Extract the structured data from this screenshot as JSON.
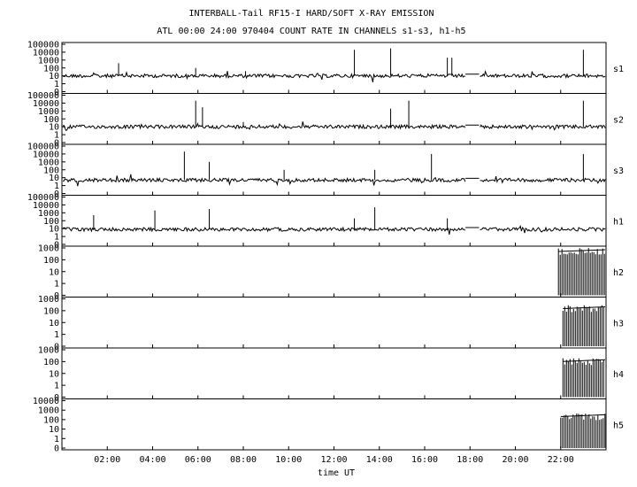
{
  "chart_data": {
    "type": "line",
    "title": "INTERBALL-Tail RF15-I HARD/SOFT X-RAY EMISSION",
    "subtitle": "ATL 00:00 24:00 970404  COUNT RATE IN CHANNELS s1-s3, h1-h5",
    "xlabel": "time UT",
    "xlim": [
      0,
      24
    ],
    "x_tick_values": [
      2,
      4,
      6,
      8,
      10,
      12,
      14,
      16,
      18,
      20,
      22
    ],
    "x_tick_labels": [
      "02:00",
      "04:00",
      "06:00",
      "08:00",
      "10:00",
      "12:00",
      "14:00",
      "16:00",
      "18:00",
      "20:00",
      "22:00"
    ],
    "yscale": "log",
    "grid": false,
    "panels": [
      {
        "channel": "s1",
        "ylim": [
          0,
          100000
        ],
        "y_tick_labels": [
          "100000",
          "10000",
          "1000",
          "100",
          "10",
          "1",
          "0"
        ],
        "baseline": 10,
        "gaps": [
          [
            17.8,
            18.4
          ]
        ],
        "spikes": [
          {
            "x": 2.5,
            "y": 400
          },
          {
            "x": 5.9,
            "y": 100
          },
          {
            "x": 8.1,
            "y": 40
          },
          {
            "x": 12.9,
            "y": 20000
          },
          {
            "x": 14.5,
            "y": 30000
          },
          {
            "x": 17.0,
            "y": 2000
          },
          {
            "x": 17.2,
            "y": 2000
          },
          {
            "x": 23.0,
            "y": 20000
          }
        ]
      },
      {
        "channel": "s2",
        "ylim": [
          0,
          100000
        ],
        "y_tick_labels": [
          "100000",
          "10000",
          "1000",
          "100",
          "10",
          "1",
          "0"
        ],
        "baseline": 10,
        "gaps": [
          [
            17.8,
            18.4
          ]
        ],
        "spikes": [
          {
            "x": 5.9,
            "y": 20000
          },
          {
            "x": 6.2,
            "y": 3000
          },
          {
            "x": 8.0,
            "y": 40
          },
          {
            "x": 14.5,
            "y": 2000
          },
          {
            "x": 15.3,
            "y": 20000
          },
          {
            "x": 23.0,
            "y": 20000
          }
        ]
      },
      {
        "channel": "s3",
        "ylim": [
          0,
          100000
        ],
        "y_tick_labels": [
          "100000",
          "10000",
          "1000",
          "100",
          "10",
          "1",
          "0"
        ],
        "baseline": 5,
        "gaps": [
          [
            17.8,
            18.4
          ]
        ],
        "spikes": [
          {
            "x": 5.4,
            "y": 20000
          },
          {
            "x": 6.5,
            "y": 1000
          },
          {
            "x": 9.8,
            "y": 100
          },
          {
            "x": 13.8,
            "y": 100
          },
          {
            "x": 16.3,
            "y": 10000
          },
          {
            "x": 23.0,
            "y": 10000
          }
        ]
      },
      {
        "channel": "h1",
        "ylim": [
          0,
          100000
        ],
        "y_tick_labels": [
          "100000",
          "10000",
          "1000",
          "100",
          "10",
          "1",
          "0"
        ],
        "baseline": 8,
        "gaps": [
          [
            17.8,
            18.4
          ]
        ],
        "spikes": [
          {
            "x": 1.4,
            "y": 500
          },
          {
            "x": 4.1,
            "y": 2000
          },
          {
            "x": 6.5,
            "y": 3000
          },
          {
            "x": 12.9,
            "y": 200
          },
          {
            "x": 13.8,
            "y": 5000
          },
          {
            "x": 17.0,
            "y": 200
          }
        ]
      },
      {
        "channel": "h2",
        "ylim": [
          0,
          1000
        ],
        "y_tick_labels": [
          "1000",
          "100",
          "10",
          "1",
          "0"
        ],
        "baseline": 0,
        "gaps": [],
        "burst": {
          "start": 21.9,
          "end": 24,
          "level": 1000
        }
      },
      {
        "channel": "h3",
        "ylim": [
          0,
          1000
        ],
        "y_tick_labels": [
          "1000",
          "100",
          "10",
          "1",
          "0"
        ],
        "baseline": 0,
        "gaps": [],
        "burst": {
          "start": 22.1,
          "end": 24,
          "level": 300
        }
      },
      {
        "channel": "h4",
        "ylim": [
          0,
          1000
        ],
        "y_tick_labels": [
          "1000",
          "100",
          "10",
          "1",
          "0"
        ],
        "baseline": 0,
        "gaps": [],
        "burst": {
          "start": 22.1,
          "end": 24,
          "level": 200
        }
      },
      {
        "channel": "h5",
        "ylim": [
          0,
          10000
        ],
        "y_tick_labels": [
          "10000",
          "1000",
          "100",
          "10",
          "1",
          "0"
        ],
        "baseline": 0,
        "gaps": [],
        "burst": {
          "start": 22.0,
          "end": 24,
          "level": 500
        }
      }
    ]
  }
}
